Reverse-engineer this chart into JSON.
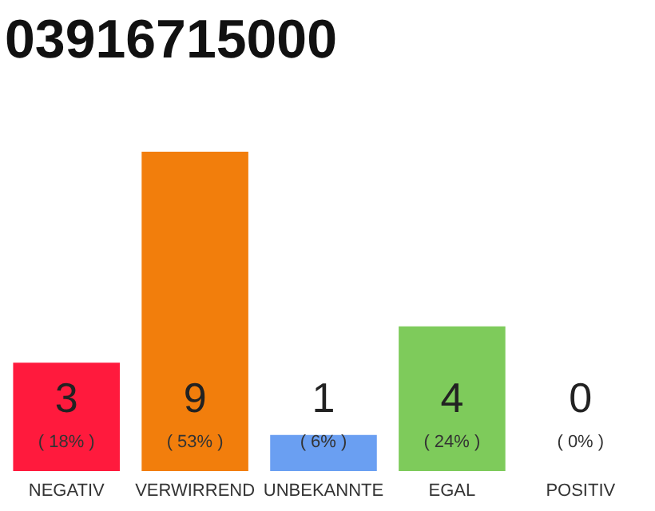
{
  "chart_data": {
    "type": "bar",
    "title": "03916715000",
    "categories": [
      "NEGATIV",
      "VERWIRREND",
      "UNBEKANNTE",
      "EGAL",
      "POSITIV"
    ],
    "values": [
      18,
      53,
      6,
      24,
      0
    ],
    "colors": [
      "#ff1a3d",
      "#f27e0c",
      "#6a9ff2",
      "#7ecb5b",
      "#bbbbbb"
    ],
    "value_labels": [
      "( 18% )",
      "( 53% )",
      "( 6% )",
      "( 24% )",
      "( 0% )"
    ],
    "annotations": [
      "3",
      "9",
      "1",
      "4",
      "0"
    ],
    "grid": false
  }
}
